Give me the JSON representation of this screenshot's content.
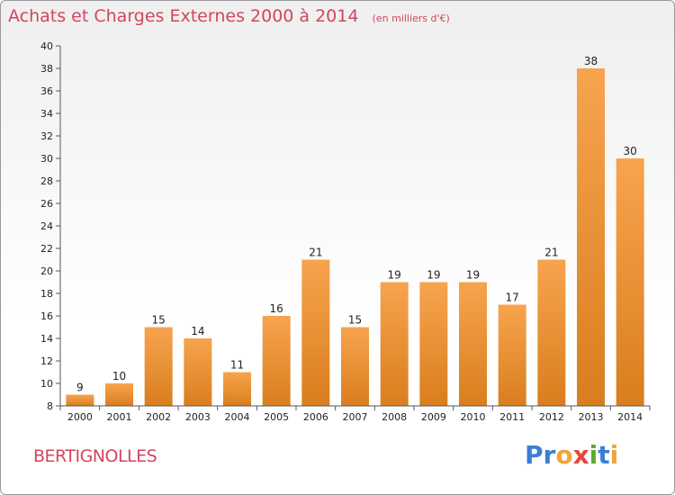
{
  "chart_data": {
    "type": "bar",
    "title": "Achats et Charges Externes 2000 à 2014",
    "unit_note": "(en milliers d'€)",
    "categories": [
      "2000",
      "2001",
      "2002",
      "2003",
      "2004",
      "2005",
      "2006",
      "2007",
      "2008",
      "2009",
      "2010",
      "2011",
      "2012",
      "2013",
      "2014"
    ],
    "values": [
      9,
      10,
      15,
      14,
      11,
      16,
      21,
      15,
      19,
      19,
      19,
      17,
      21,
      38,
      30
    ],
    "xlabel": "",
    "ylabel": "",
    "ylim": [
      8,
      40
    ],
    "yticks": [
      8,
      10,
      12,
      14,
      16,
      18,
      20,
      22,
      24,
      26,
      28,
      30,
      32,
      34,
      36,
      38,
      40
    ],
    "grid": false,
    "legend": "none",
    "bar_color_top": "#f7a44e",
    "bar_color_bottom": "#d97e1e"
  },
  "commune": "BERTIGNOLLES",
  "brand": {
    "letters": [
      {
        "ch": "P",
        "color": "#3a7fd5"
      },
      {
        "ch": "r",
        "color": "#3a7fd5"
      },
      {
        "ch": "o",
        "color": "#f2a43a"
      },
      {
        "ch": "x",
        "color": "#e8463c"
      },
      {
        "ch": "i",
        "color": "#5aaa32"
      },
      {
        "ch": "t",
        "color": "#3a7fd5"
      },
      {
        "ch": "i",
        "color": "#f2a43a"
      }
    ]
  }
}
